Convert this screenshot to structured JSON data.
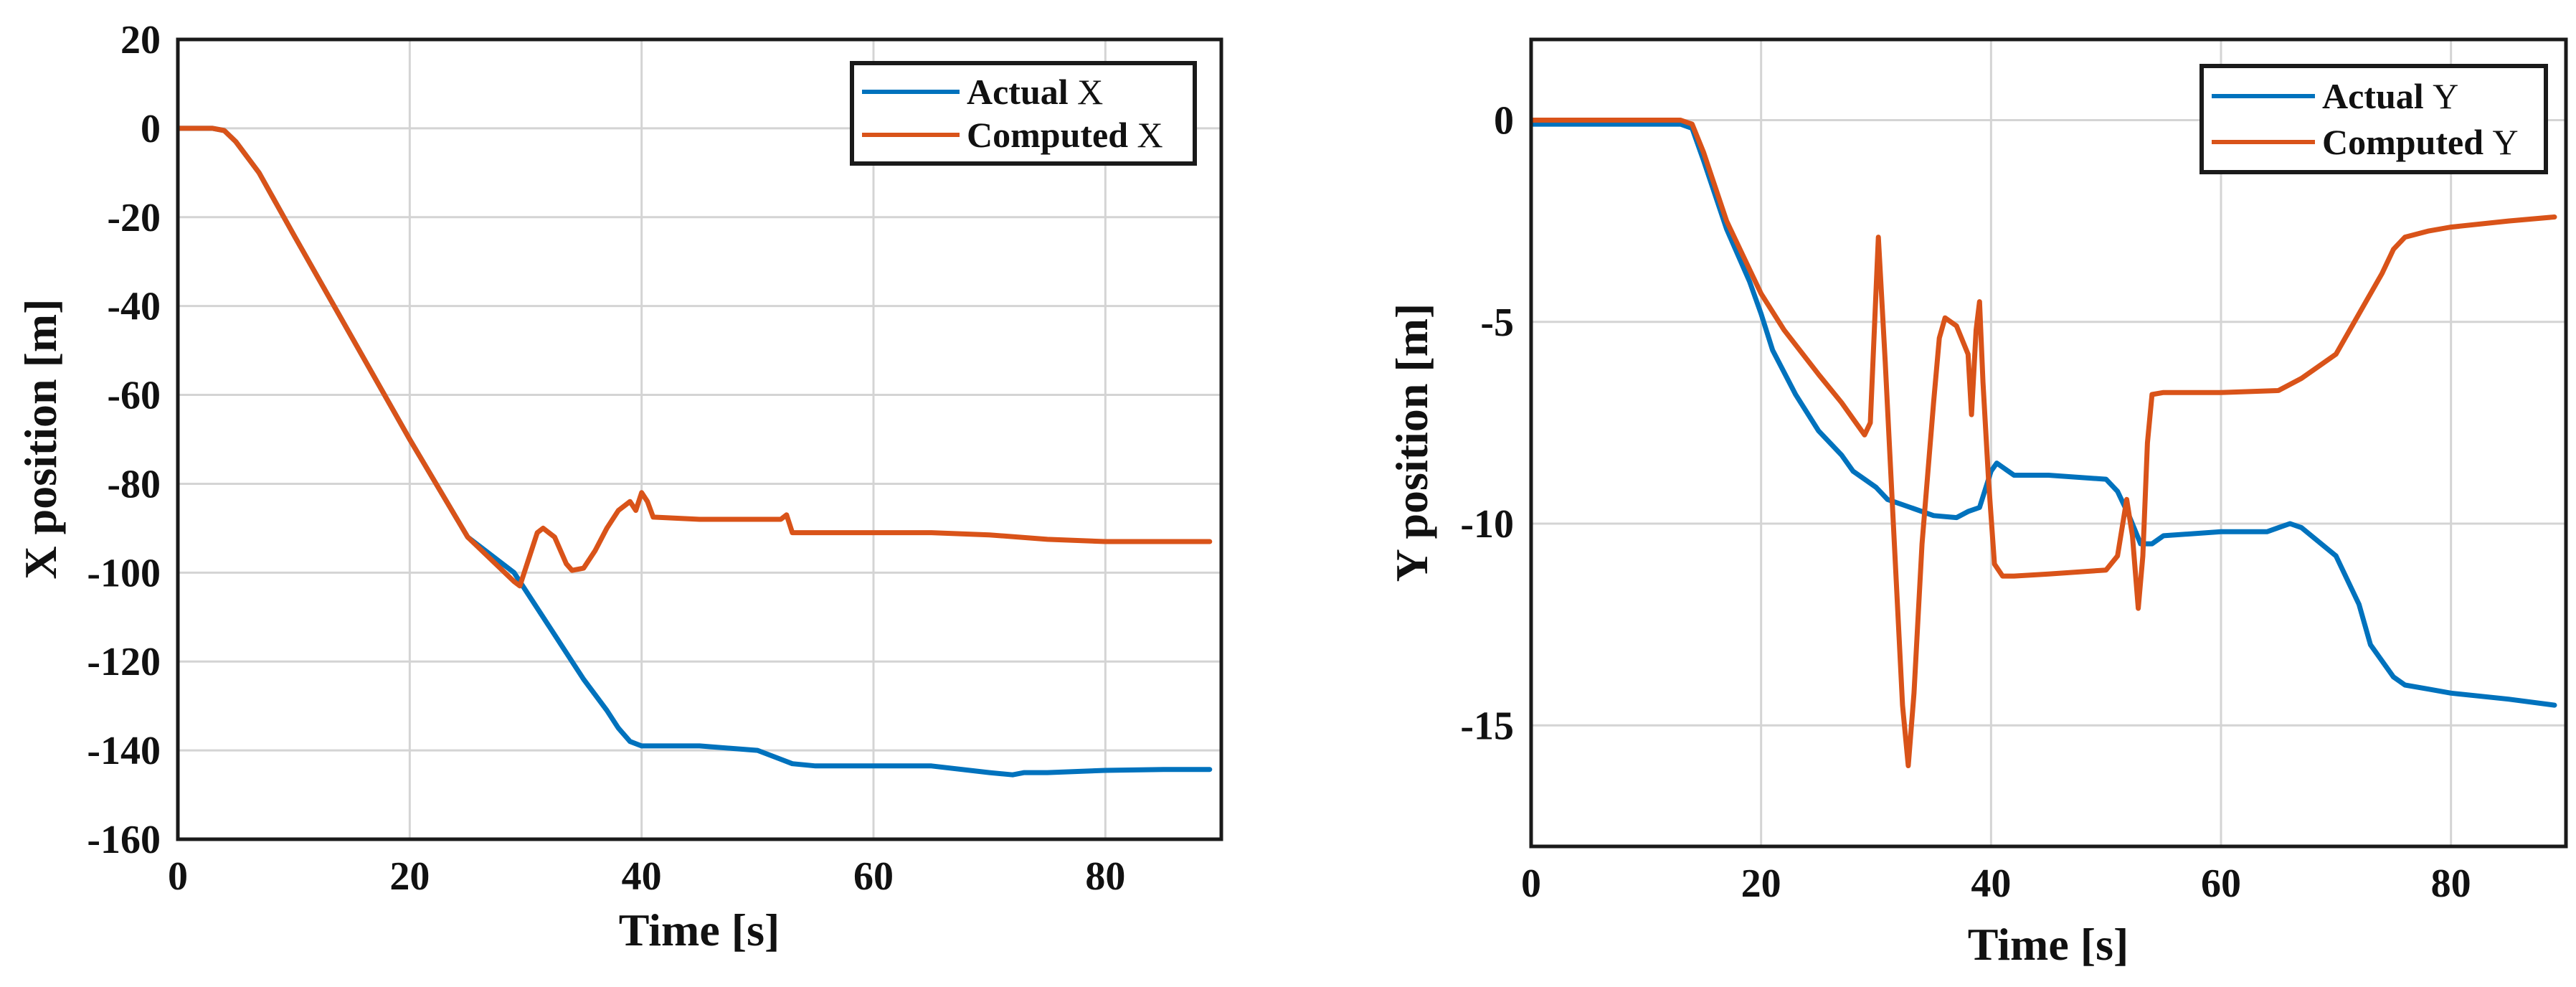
{
  "chart_data": [
    {
      "type": "line",
      "xlabel": "Time [s]",
      "ylabel": "X position [m]",
      "xlim": [
        0,
        90
      ],
      "ylim": [
        -160,
        20
      ],
      "xticks": [
        0,
        20,
        40,
        60,
        80
      ],
      "yticks": [
        20,
        0,
        -20,
        -40,
        -60,
        -80,
        -100,
        -120,
        -140,
        -160
      ],
      "grid": true,
      "legend_position": "top-right",
      "series": [
        {
          "name": "Actual X",
          "name_bold": "Actual",
          "name_suffix": "X",
          "color": "#0072BD",
          "x": [
            0,
            3,
            4,
            5,
            7,
            10,
            15,
            20,
            25,
            29,
            31,
            33,
            35,
            37,
            38,
            39,
            40,
            45,
            50,
            52,
            53,
            55,
            60,
            65,
            70,
            72,
            73,
            75,
            80,
            85,
            89
          ],
          "y": [
            0,
            0,
            -0.5,
            -3,
            -10,
            -24,
            -47,
            -70,
            -92,
            -100,
            -108,
            -116,
            -124,
            -131,
            -135,
            -138,
            -139,
            -139,
            -140,
            -142,
            -143,
            -143.5,
            -143.5,
            -143.5,
            -145,
            -145.5,
            -145,
            -145,
            -144.5,
            -144.3,
            -144.3
          ]
        },
        {
          "name": "Computed X",
          "name_bold": "Computed",
          "name_suffix": "X",
          "color": "#D95319",
          "x": [
            0,
            3,
            4,
            5,
            7,
            10,
            15,
            20,
            25,
            29,
            29.5,
            30.5,
            31,
            31.5,
            32.5,
            33.5,
            34,
            35,
            36,
            37,
            38,
            39,
            39.5,
            40,
            40.5,
            41,
            45,
            50,
            52,
            52.5,
            53,
            55,
            60,
            65,
            70,
            75,
            80,
            85,
            89
          ],
          "y": [
            0,
            0,
            -0.5,
            -3,
            -10,
            -24,
            -47,
            -70,
            -92,
            -102,
            -103,
            -95,
            -91,
            -90,
            -92,
            -98,
            -99.5,
            -99,
            -95,
            -90,
            -86,
            -84,
            -86,
            -82,
            -84,
            -87.5,
            -88,
            -88,
            -88,
            -87,
            -91,
            -91,
            -91,
            -91,
            -91.5,
            -92.5,
            -93,
            -93,
            -93
          ]
        }
      ]
    },
    {
      "type": "line",
      "xlabel": "Time [s]",
      "ylabel": "Y position [m]",
      "xlim": [
        0,
        90
      ],
      "ylim": [
        -18,
        2
      ],
      "xticks": [
        0,
        20,
        40,
        60,
        80
      ],
      "yticks": [
        0,
        -5,
        -10,
        -15
      ],
      "grid": true,
      "legend_position": "top-right",
      "series": [
        {
          "name": "Actual Y",
          "name_bold": "Actual",
          "name_suffix": "Y",
          "color": "#0072BD",
          "x": [
            0,
            13,
            14,
            15,
            17,
            19,
            20,
            21,
            23,
            25,
            27,
            28,
            29,
            30,
            31,
            33,
            35,
            37,
            38,
            39,
            40,
            40.5,
            41,
            42,
            45,
            50,
            51,
            52,
            53,
            54,
            55,
            60,
            64,
            65,
            66,
            67,
            70,
            72,
            73,
            75,
            76,
            78,
            80,
            85,
            89
          ],
          "y": [
            -0.1,
            -0.1,
            -0.2,
            -1,
            -2.7,
            -4,
            -4.8,
            -5.7,
            -6.8,
            -7.7,
            -8.3,
            -8.7,
            -8.9,
            -9.1,
            -9.4,
            -9.6,
            -9.8,
            -9.85,
            -9.7,
            -9.6,
            -8.7,
            -8.5,
            -8.6,
            -8.8,
            -8.8,
            -8.9,
            -9.2,
            -9.8,
            -10.5,
            -10.5,
            -10.3,
            -10.2,
            -10.2,
            -10.1,
            -10.0,
            -10.1,
            -10.8,
            -12,
            -13,
            -13.8,
            -14.0,
            -14.1,
            -14.2,
            -14.35,
            -14.5
          ]
        },
        {
          "name": "Computed Y",
          "name_bold": "Computed",
          "name_suffix": "Y",
          "color": "#D95319",
          "x": [
            0,
            13,
            14,
            15,
            17,
            19,
            20,
            22,
            25,
            27,
            28,
            29,
            29.5,
            30.2,
            30.8,
            31.5,
            32.3,
            32.8,
            33.3,
            34,
            35,
            35.5,
            36,
            37,
            38,
            38.3,
            38.7,
            39,
            39.3,
            39.8,
            40.3,
            41,
            42,
            45,
            50,
            51,
            51.8,
            52.3,
            52.8,
            53.2,
            53.6,
            54,
            55,
            60,
            65,
            67,
            70,
            72,
            74,
            75,
            76,
            78,
            80,
            85,
            89
          ],
          "y": [
            0,
            0,
            -0.1,
            -0.8,
            -2.5,
            -3.7,
            -4.3,
            -5.2,
            -6.3,
            -7,
            -7.4,
            -7.8,
            -7.5,
            -2.9,
            -6,
            -10,
            -14.5,
            -16,
            -14.2,
            -10.5,
            -7,
            -5.4,
            -4.9,
            -5.1,
            -5.8,
            -7.3,
            -5.2,
            -4.5,
            -6.5,
            -9,
            -11,
            -11.3,
            -11.3,
            -11.25,
            -11.15,
            -10.8,
            -9.4,
            -10.3,
            -12.1,
            -10.8,
            -8,
            -6.8,
            -6.75,
            -6.75,
            -6.7,
            -6.4,
            -5.8,
            -4.8,
            -3.8,
            -3.2,
            -2.9,
            -2.75,
            -2.65,
            -2.5,
            -2.4
          ]
        }
      ]
    }
  ]
}
